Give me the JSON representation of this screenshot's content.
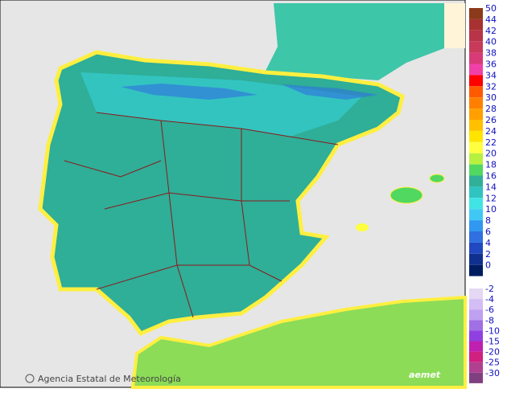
{
  "legend": {
    "positive": [
      {
        "label": "50",
        "color": "#8b3a1a"
      },
      {
        "label": "44",
        "color": "#a83232"
      },
      {
        "label": "42",
        "color": "#b83448"
      },
      {
        "label": "40",
        "color": "#c83a5a"
      },
      {
        "label": "38",
        "color": "#d83a78"
      },
      {
        "label": "36",
        "color": "#f040a8"
      },
      {
        "label": "34",
        "color": "#ff0000"
      },
      {
        "label": "32",
        "color": "#ff5a00"
      },
      {
        "label": "30",
        "color": "#ff8000"
      },
      {
        "label": "28",
        "color": "#ffa000"
      },
      {
        "label": "26",
        "color": "#ffc000"
      },
      {
        "label": "24",
        "color": "#ffe400"
      },
      {
        "label": "22",
        "color": "#ffff40"
      },
      {
        "label": "20",
        "color": "#b8f040"
      },
      {
        "label": "18",
        "color": "#50d860"
      },
      {
        "label": "16",
        "color": "#30b098"
      },
      {
        "label": "14",
        "color": "#30c4c0"
      },
      {
        "label": "12",
        "color": "#40e4e4"
      },
      {
        "label": "10",
        "color": "#40c8f4"
      },
      {
        "label": "8",
        "color": "#3098f0"
      },
      {
        "label": "6",
        "color": "#3070e0"
      },
      {
        "label": "4",
        "color": "#2048c0"
      },
      {
        "label": "2",
        "color": "#103090"
      },
      {
        "label": "0",
        "color": "#001c60"
      }
    ],
    "negative": [
      {
        "label": "-2",
        "color": "#e4d8f4"
      },
      {
        "label": "-4",
        "color": "#d4bcf4"
      },
      {
        "label": "-6",
        "color": "#c0a0f0"
      },
      {
        "label": "-8",
        "color": "#a070e4"
      },
      {
        "label": "-10",
        "color": "#9040e0"
      },
      {
        "label": "-15",
        "color": "#c020b0"
      },
      {
        "label": "-20",
        "color": "#d02080"
      },
      {
        "label": "-25",
        "color": "#b04090"
      },
      {
        "label": "-30",
        "color": "#804080"
      }
    ]
  },
  "credit": "Agencia Estatal de Meteorología",
  "logo": "aemet"
}
